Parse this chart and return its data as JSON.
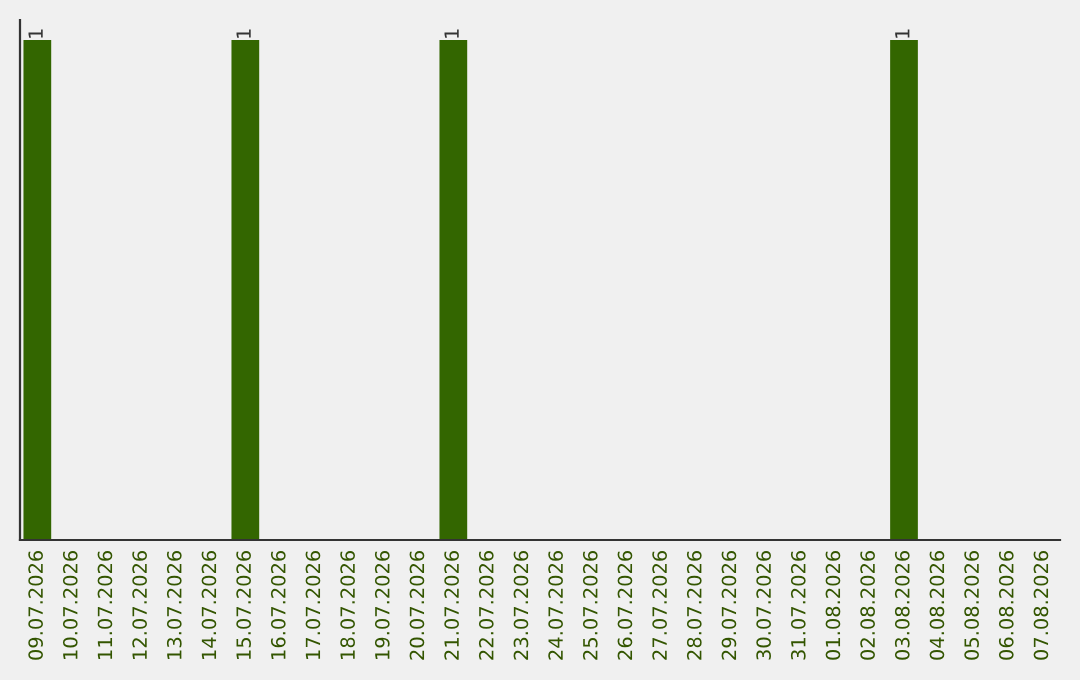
{
  "chart_data": {
    "type": "bar",
    "categories": [
      "09.07.2026",
      "10.07.2026",
      "11.07.2026",
      "12.07.2026",
      "13.07.2026",
      "14.07.2026",
      "15.07.2026",
      "16.07.2026",
      "17.07.2026",
      "18.07.2026",
      "19.07.2026",
      "20.07.2026",
      "21.07.2026",
      "22.07.2026",
      "23.07.2026",
      "24.07.2026",
      "25.07.2026",
      "26.07.2026",
      "27.07.2026",
      "28.07.2026",
      "29.07.2026",
      "30.07.2026",
      "31.07.2026",
      "01.08.2026",
      "02.08.2026",
      "03.08.2026",
      "04.08.2026",
      "05.08.2026",
      "06.08.2026",
      "07.08.2026"
    ],
    "values": [
      1,
      0,
      0,
      0,
      0,
      0,
      1,
      0,
      0,
      0,
      0,
      0,
      1,
      0,
      0,
      0,
      0,
      0,
      0,
      0,
      0,
      0,
      0,
      0,
      0,
      1,
      0,
      0,
      0,
      0
    ],
    "value_labels": [
      "1",
      null,
      null,
      null,
      null,
      null,
      "1",
      null,
      null,
      null,
      null,
      null,
      "1",
      null,
      null,
      null,
      null,
      null,
      null,
      null,
      null,
      null,
      null,
      null,
      null,
      "1",
      null,
      null,
      null,
      null
    ],
    "color": "#336600",
    "tick_labels": "x",
    "grid": false,
    "legend": false
  }
}
